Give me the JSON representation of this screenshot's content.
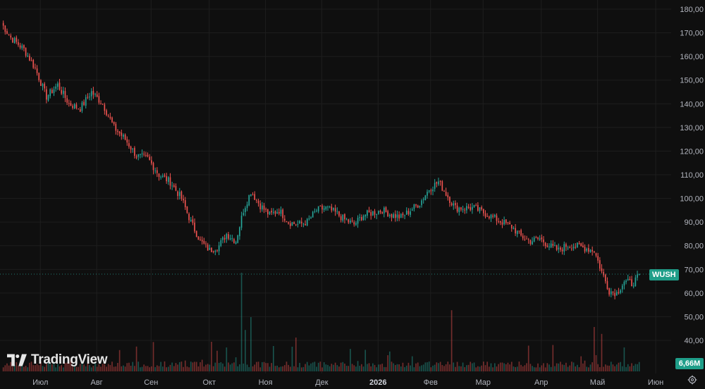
{
  "chart_data": {
    "type": "candlestick",
    "symbol": "WUSH",
    "y_range": [
      35,
      180
    ],
    "y_ticks": [
      "180,00",
      "170,00",
      "160,00",
      "150,00",
      "140,00",
      "130,00",
      "120,00",
      "110,00",
      "100,00",
      "90,00",
      "80,00",
      "70,00",
      "60,00",
      "50,00",
      "40,00"
    ],
    "y_tick_values": [
      180,
      170,
      160,
      150,
      140,
      130,
      120,
      110,
      100,
      90,
      80,
      70,
      60,
      50,
      40
    ],
    "x_labels": [
      {
        "label": "Июл",
        "bold": false
      },
      {
        "label": "Авг",
        "bold": false
      },
      {
        "label": "Сен",
        "bold": false
      },
      {
        "label": "Окт",
        "bold": false
      },
      {
        "label": "Ноя",
        "bold": false
      },
      {
        "label": "Дек",
        "bold": false
      },
      {
        "label": "2026",
        "bold": true
      },
      {
        "label": "Фев",
        "bold": false
      },
      {
        "label": "Мар",
        "bold": false
      },
      {
        "label": "Апр",
        "bold": false
      },
      {
        "label": "Май",
        "bold": false
      },
      {
        "label": "Июн",
        "bold": false
      }
    ],
    "x_label_index": [
      8,
      38,
      67,
      98,
      128,
      158,
      188,
      216,
      244,
      275,
      305,
      336
    ],
    "last_price_line": 68,
    "volume_label": "6,66M",
    "keypoints": [
      [
        0,
        174
      ],
      [
        5,
        168
      ],
      [
        12,
        163
      ],
      [
        18,
        155
      ],
      [
        24,
        143
      ],
      [
        30,
        148
      ],
      [
        36,
        140
      ],
      [
        42,
        138
      ],
      [
        48,
        145
      ],
      [
        54,
        140
      ],
      [
        60,
        130
      ],
      [
        66,
        125
      ],
      [
        72,
        118
      ],
      [
        78,
        117
      ],
      [
        84,
        110
      ],
      [
        90,
        107
      ],
      [
        96,
        100
      ],
      [
        101,
        90
      ],
      [
        106,
        82
      ],
      [
        111,
        78
      ],
      [
        116,
        80
      ],
      [
        120,
        85
      ],
      [
        125,
        82
      ],
      [
        129,
        95
      ],
      [
        133,
        103
      ],
      [
        138,
        97
      ],
      [
        143,
        93
      ],
      [
        148,
        95
      ],
      [
        153,
        90
      ],
      [
        158,
        89
      ],
      [
        163,
        90
      ],
      [
        168,
        95
      ],
      [
        173,
        96
      ],
      [
        178,
        94
      ],
      [
        183,
        91
      ],
      [
        188,
        89
      ],
      [
        193,
        93
      ],
      [
        198,
        94
      ],
      [
        203,
        95
      ],
      [
        208,
        93
      ],
      [
        213,
        92
      ],
      [
        218,
        95
      ],
      [
        223,
        98
      ],
      [
        228,
        104
      ],
      [
        233,
        107
      ],
      [
        237,
        102
      ],
      [
        242,
        96
      ],
      [
        247,
        96
      ],
      [
        252,
        96
      ],
      [
        257,
        94
      ],
      [
        262,
        92
      ],
      [
        267,
        90
      ],
      [
        272,
        88
      ],
      [
        277,
        84
      ],
      [
        282,
        82
      ],
      [
        287,
        83
      ],
      [
        292,
        80
      ],
      [
        297,
        78
      ],
      [
        301,
        80
      ],
      [
        306,
        80
      ],
      [
        311,
        79
      ],
      [
        316,
        78
      ],
      [
        320,
        69
      ],
      [
        324,
        61
      ],
      [
        328,
        60
      ],
      [
        332,
        65
      ],
      [
        336,
        64
      ],
      [
        340,
        67
      ]
    ]
  },
  "branding": {
    "logo_text": "TradingView"
  },
  "icons": {
    "settings": "gear-icon",
    "logo": "tradingview-logo-icon"
  },
  "colors": {
    "up": "#26a69a",
    "down": "#ef5350",
    "grid": "#1e1e1e",
    "background": "#0f0f0f",
    "badge": "#1f9e89"
  }
}
